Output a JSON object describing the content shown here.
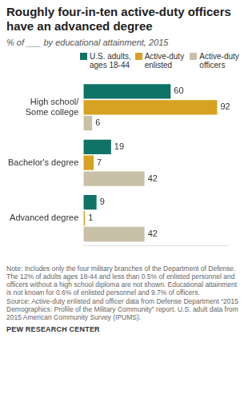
{
  "chart_data": {
    "type": "bar",
    "orientation": "horizontal",
    "title": "Roughly four-in-ten active-duty officers have an advanced degree",
    "subtitle": "% of ___ by educational attainment, 2015",
    "categories": [
      "High school/ Some college",
      "Bachelor's degree",
      "Advanced degree"
    ],
    "series": [
      {
        "name": "U.S. adults, ages 18-44",
        "color": "#0f7466",
        "values": [
          60,
          19,
          9
        ]
      },
      {
        "name": "Active-duty enlisted",
        "color": "#d7a222",
        "values": [
          92,
          7,
          1
        ]
      },
      {
        "name": "Active-duty officers",
        "color": "#c9c0a8",
        "values": [
          6,
          42,
          42
        ]
      }
    ],
    "xlim": [
      0,
      100
    ],
    "grid": false,
    "data_labels": true,
    "tick_labels": "y",
    "note": "Note: Includes only the four military branches of the Department of Defense. The 12% of adults ages 18-44 and less than 0.5% of enlisted personnel and officers without a high school diploma are not shown. Educational attainment is not known for 0.6% of enlisted personnel and 9.7% of officers.",
    "source": "Source: Active-duty enlisted and officer data from Defense Department “2015 Demographics: Profile of the Military Community” report. U.S. adult data from 2015 American Community Survey (IPUMS).",
    "credit": "PEW RESEARCH CENTER"
  }
}
